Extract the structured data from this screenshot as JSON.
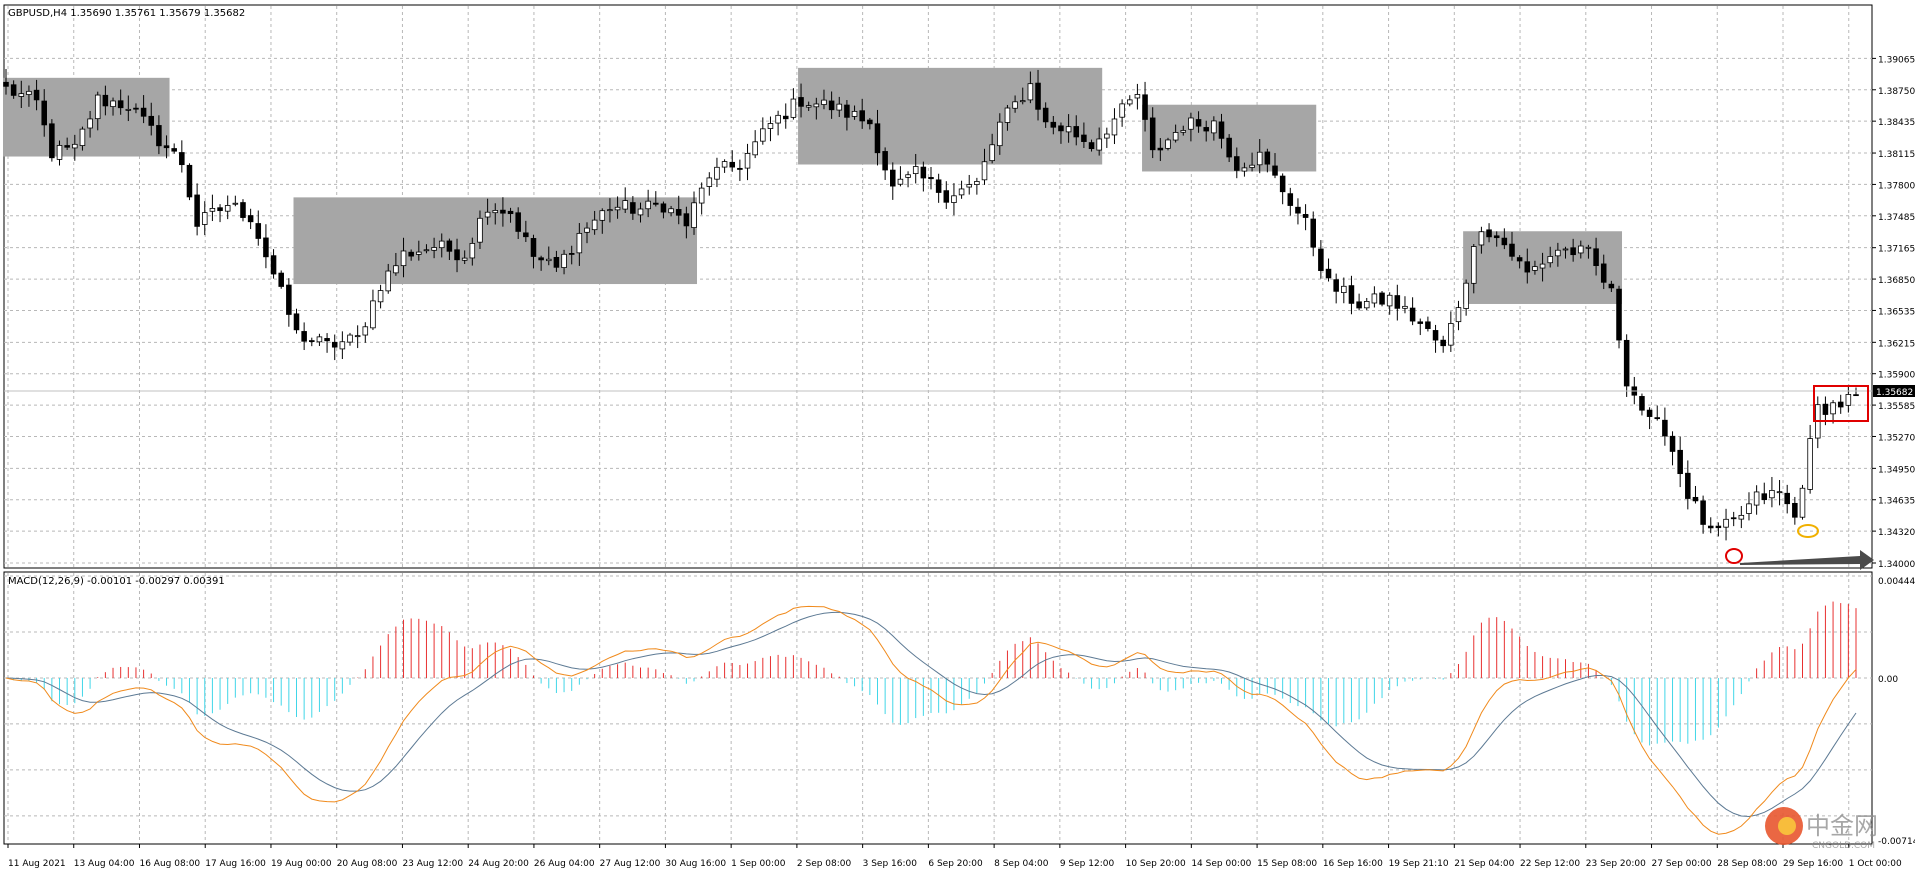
{
  "header": {
    "symbol_info": "GBPUSD,H4  1.35690 1.35761 1.35679 1.35682",
    "macd_info": "MACD(12,26,9) -0.00101 -0.00297 0.00391"
  },
  "colors": {
    "bull_candle_body": "#ffffff",
    "bear_candle_body": "#000000",
    "candle_outline": "#000000",
    "consolidation_box": "#a6a6a6",
    "grid": "#b8b8b8",
    "hist_positive": "#e83030",
    "hist_negative": "#41d6e8",
    "macd_line": "#f08a1c",
    "signal_line": "#5d7a94",
    "last_price_badge": "#000000",
    "highlight_box": "#e00000",
    "circle_low": "#e00000",
    "circle_dip": "#f0b000",
    "arrow": "#4a4a4a"
  },
  "watermark": {
    "brand": "中金网",
    "site": "CNGOLD.COM"
  },
  "chart_data": [
    {
      "type": "candlestick",
      "symbol": "GBPUSD",
      "timeframe": "H4",
      "ohlc_last": {
        "open": 1.3569,
        "high": 1.35761,
        "low": 1.35679,
        "close": 1.35682
      },
      "last_price_label": "1.35682",
      "y_ticks": [
        "1.39065",
        "1.38750",
        "1.38435",
        "1.38115",
        "1.37800",
        "1.37485",
        "1.37165",
        "1.36850",
        "1.36535",
        "1.36215",
        "1.35900",
        "1.35585",
        "1.35270",
        "1.34950",
        "1.34635",
        "1.34320",
        "1.34000"
      ],
      "ylim": [
        1.34,
        1.3935
      ],
      "x_ticks": [
        "11 Aug 2021",
        "13 Aug 04:00",
        "16 Aug 08:00",
        "17 Aug 16:00",
        "19 Aug 00:00",
        "20 Aug 08:00",
        "23 Aug 12:00",
        "24 Aug 20:00",
        "26 Aug 04:00",
        "27 Aug 12:00",
        "30 Aug 16:00",
        "1 Sep 00:00",
        "2 Sep 08:00",
        "3 Sep 16:00",
        "6 Sep 20:00",
        "8 Sep 04:00",
        "9 Sep 12:00",
        "10 Sep 20:00",
        "14 Sep 00:00",
        "15 Sep 08:00",
        "16 Sep 16:00",
        "19 Sep 21:10",
        "21 Sep 04:00",
        "22 Sep 12:00",
        "23 Sep 20:00",
        "27 Sep 00:00",
        "28 Sep 08:00",
        "29 Sep 16:00",
        "1 Oct 00:00"
      ],
      "consolidation_boxes": [
        {
          "from_bar": 0,
          "to_bar": 21,
          "high": 1.3887,
          "low": 1.3808
        },
        {
          "from_bar": 38,
          "to_bar": 90,
          "high": 1.3767,
          "low": 1.368
        },
        {
          "from_bar": 104,
          "to_bar": 143,
          "high": 1.3897,
          "low": 1.38
        },
        {
          "from_bar": 149,
          "to_bar": 171,
          "high": 1.386,
          "low": 1.3793
        },
        {
          "from_bar": 191,
          "to_bar": 211,
          "high": 1.3733,
          "low": 1.366
        }
      ],
      "waypoints": [
        [
          0,
          1.3876
        ],
        [
          4,
          1.3862
        ],
        [
          6,
          1.3812
        ],
        [
          9,
          1.3815
        ],
        [
          12,
          1.3865
        ],
        [
          16,
          1.386
        ],
        [
          20,
          1.3825
        ],
        [
          23,
          1.3802
        ],
        [
          25,
          1.374
        ],
        [
          29,
          1.376
        ],
        [
          32,
          1.3748
        ],
        [
          35,
          1.369
        ],
        [
          38,
          1.363
        ],
        [
          42,
          1.3618
        ],
        [
          46,
          1.3625
        ],
        [
          49,
          1.368
        ],
        [
          52,
          1.371
        ],
        [
          56,
          1.3718
        ],
        [
          60,
          1.371
        ],
        [
          63,
          1.376
        ],
        [
          66,
          1.3752
        ],
        [
          69,
          1.3708
        ],
        [
          72,
          1.3695
        ],
        [
          75,
          1.373
        ],
        [
          79,
          1.3758
        ],
        [
          83,
          1.3755
        ],
        [
          86,
          1.376
        ],
        [
          89,
          1.374
        ],
        [
          92,
          1.379
        ],
        [
          96,
          1.38
        ],
        [
          100,
          1.384
        ],
        [
          104,
          1.3865
        ],
        [
          108,
          1.3858
        ],
        [
          113,
          1.3842
        ],
        [
          116,
          1.3775
        ],
        [
          119,
          1.379
        ],
        [
          123,
          1.377
        ],
        [
          127,
          1.378
        ],
        [
          130,
          1.384
        ],
        [
          134,
          1.388
        ],
        [
          136,
          1.384
        ],
        [
          139,
          1.3835
        ],
        [
          142,
          1.382
        ],
        [
          145,
          1.3845
        ],
        [
          148,
          1.387
        ],
        [
          150,
          1.381
        ],
        [
          154,
          1.384
        ],
        [
          158,
          1.3842
        ],
        [
          161,
          1.38
        ],
        [
          164,
          1.3808
        ],
        [
          167,
          1.3775
        ],
        [
          170,
          1.374
        ],
        [
          173,
          1.368
        ],
        [
          177,
          1.366
        ],
        [
          181,
          1.3665
        ],
        [
          185,
          1.364
        ],
        [
          188,
          1.3615
        ],
        [
          190,
          1.366
        ],
        [
          193,
          1.374
        ],
        [
          196,
          1.372
        ],
        [
          199,
          1.369
        ],
        [
          203,
          1.3715
        ],
        [
          207,
          1.371
        ],
        [
          210,
          1.367
        ],
        [
          212,
          1.3585
        ],
        [
          215,
          1.354
        ],
        [
          217,
          1.3535
        ],
        [
          220,
          1.347
        ],
        [
          223,
          1.3428
        ],
        [
          226,
          1.344
        ],
        [
          229,
          1.3465
        ],
        [
          232,
          1.347
        ],
        [
          234,
          1.3445
        ],
        [
          237,
          1.3555
        ],
        [
          240,
          1.356
        ],
        [
          242,
          1.3568
        ]
      ],
      "annotations": [
        "red rectangle around latest candles",
        "red circle at swing low",
        "yellow circle at higher low",
        "gray arrow pointing right along the lows"
      ]
    },
    {
      "type": "macd",
      "params": "MACD(12,26,9)",
      "main": -0.00101,
      "signal": -0.00297,
      "histogram": 0.00391,
      "y_ticks": [
        "0.00444",
        "0.00",
        "-0.00714"
      ],
      "ylim": [
        -0.00714,
        0.00444
      ]
    }
  ]
}
